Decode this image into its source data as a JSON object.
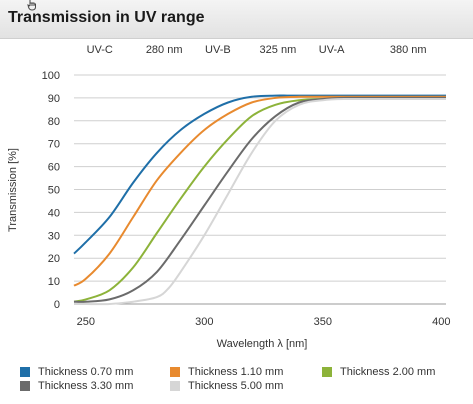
{
  "header": {
    "title": "Transmission in UV range"
  },
  "chart_data": {
    "type": "line",
    "title": "Transmission in UV range",
    "xlabel": "Wavelength λ [nm]",
    "ylabel": "Transmission [%]",
    "xlim": [
      245,
      402
    ],
    "ylim": [
      0,
      100
    ],
    "x_ticks": [
      250,
      300,
      350,
      400
    ],
    "y_ticks": [
      0,
      10,
      20,
      30,
      40,
      50,
      60,
      70,
      80,
      90,
      100
    ],
    "grid": "horizontal",
    "legend_position": "bottom",
    "top_labels": [
      {
        "text": "UV-C",
        "x": 252
      },
      {
        "text": "280 nm",
        "x": 277
      },
      {
        "text": "UV-B",
        "x": 302
      },
      {
        "text": "325 nm",
        "x": 325
      },
      {
        "text": "UV-A",
        "x": 350
      },
      {
        "text": "380 nm",
        "x": 380
      }
    ],
    "series": [
      {
        "name": "Thickness 0.70 mm",
        "color": "#1f6fa8",
        "x": [
          245,
          250,
          260,
          270,
          280,
          290,
          300,
          310,
          320,
          330,
          335,
          340,
          350,
          360,
          380,
          402
        ],
        "y": [
          22,
          27,
          38,
          53,
          66,
          76,
          83,
          88,
          90.5,
          91,
          91,
          91,
          91,
          91,
          91,
          91
        ]
      },
      {
        "name": "Thickness 1.10 mm",
        "color": "#e88a2f",
        "x": [
          245,
          250,
          260,
          270,
          280,
          290,
          300,
          310,
          320,
          330,
          340,
          350,
          360,
          380,
          402
        ],
        "y": [
          8,
          11,
          22,
          38,
          54,
          66,
          76,
          83,
          88,
          90,
          90.5,
          90.5,
          90.5,
          90.5,
          90.5
        ]
      },
      {
        "name": "Thickness 2.00 mm",
        "color": "#8db33a",
        "x": [
          245,
          250,
          260,
          270,
          280,
          290,
          300,
          310,
          320,
          330,
          340,
          350,
          360,
          380,
          402
        ],
        "y": [
          1,
          2,
          6,
          16,
          31,
          46,
          60,
          72,
          82,
          87,
          89,
          89.5,
          89.5,
          89.5,
          89.5
        ]
      },
      {
        "name": "Thickness 3.30 mm",
        "color": "#6b6b6b",
        "x": [
          245,
          250,
          260,
          270,
          280,
          290,
          300,
          310,
          320,
          330,
          340,
          350,
          360,
          380,
          402
        ],
        "y": [
          1,
          1,
          2,
          6,
          14,
          28,
          43,
          58,
          72,
          82,
          88,
          89.5,
          90,
          90,
          90
        ]
      },
      {
        "name": "Thickness 5.00 mm",
        "color": "#d6d6d6",
        "x": [
          245,
          250,
          260,
          270,
          280,
          285,
          290,
          300,
          310,
          320,
          330,
          340,
          350,
          360,
          380,
          402
        ],
        "y": [
          0,
          0,
          0,
          1,
          3,
          7,
          14,
          30,
          48,
          66,
          80,
          87,
          89,
          89.5,
          89.5,
          89.5
        ]
      }
    ]
  },
  "legend": {
    "items": [
      {
        "label": "Thickness 0.70 mm",
        "color": "#1f6fa8"
      },
      {
        "label": "Thickness 1.10 mm",
        "color": "#e88a2f"
      },
      {
        "label": "Thickness 2.00 mm",
        "color": "#8db33a"
      },
      {
        "label": "Thickness 3.30 mm",
        "color": "#6b6b6b"
      },
      {
        "label": "Thickness 5.00 mm",
        "color": "#d6d6d6"
      }
    ]
  }
}
